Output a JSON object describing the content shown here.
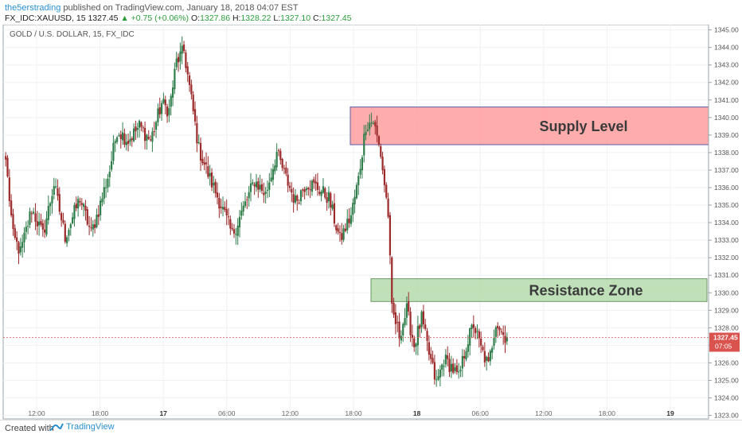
{
  "header": {
    "author": "the5erstrading",
    "published": "published on TradingView.com, January 18, 2018 04:07 EST",
    "symbol": "FX_IDC:XAUUSD, 15",
    "last": "1327.45",
    "change_arrow": "▲",
    "change": "+0.75 (+0.06%)",
    "o_label": "O:",
    "o_value": "1327.86",
    "h_label": "H:",
    "h_value": "1328.22",
    "l_label": "L:",
    "l_value": "1327.10",
    "c_label": "C:",
    "c_value": "1327.45"
  },
  "chart_data": {
    "type": "candlestick",
    "title": "GOLD / U.S. DOLLAR, 15, FX_IDC",
    "ylim": [
      1322.8,
      1345.3
    ],
    "y_ticks": [
      "1345.00",
      "1344.00",
      "1343.00",
      "1342.00",
      "1341.00",
      "1340.00",
      "1339.00",
      "1338.00",
      "1337.00",
      "1336.00",
      "1335.00",
      "1334.00",
      "1333.00",
      "1332.00",
      "1331.00",
      "1330.00",
      "1329.00",
      "1328.00",
      "1327.00",
      "1326.00",
      "1325.00",
      "1324.00",
      "1323.00"
    ],
    "x_ticks": [
      "12:00",
      "18:00",
      "17",
      "06:00",
      "12:00",
      "18:00",
      "18",
      "06:00",
      "12:00",
      "18:00",
      "19"
    ],
    "last_price_label": "1327.45",
    "countdown_label": "07:05",
    "last_price": 1327.45,
    "colors": {
      "up": "#2f7d4a",
      "down": "#9c2a2a",
      "last_price": "#d9534f",
      "supply": "#ff9e9e",
      "resistance": "#b5dbad"
    },
    "zones": [
      {
        "name": "supply",
        "label": "Supply Level",
        "top": 1340.6,
        "bottom": 1338.45
      },
      {
        "name": "resistance",
        "label": "Resistance Zone",
        "top": 1330.8,
        "bottom": 1329.5
      }
    ],
    "anchors": [
      [
        0,
        1337.6
      ],
      [
        4,
        1333.2
      ],
      [
        8,
        1332.3
      ],
      [
        14,
        1334.8
      ],
      [
        20,
        1333.3
      ],
      [
        26,
        1336.2
      ],
      [
        32,
        1333.2
      ],
      [
        40,
        1335.4
      ],
      [
        46,
        1333.4
      ],
      [
        50,
        1334.7
      ],
      [
        56,
        1337.0
      ],
      [
        60,
        1339.3
      ],
      [
        66,
        1338.7
      ],
      [
        72,
        1339.5
      ],
      [
        78,
        1338.7
      ],
      [
        84,
        1340.8
      ],
      [
        88,
        1340.4
      ],
      [
        92,
        1343.2
      ],
      [
        96,
        1343.8
      ],
      [
        100,
        1341.0
      ],
      [
        104,
        1338.2
      ],
      [
        110,
        1336.5
      ],
      [
        116,
        1335.0
      ],
      [
        122,
        1333.3
      ],
      [
        128,
        1334.8
      ],
      [
        134,
        1336.4
      ],
      [
        140,
        1335.6
      ],
      [
        146,
        1338.0
      ],
      [
        150,
        1336.8
      ],
      [
        156,
        1335.2
      ],
      [
        162,
        1336.3
      ],
      [
        168,
        1336.0
      ],
      [
        174,
        1335.4
      ],
      [
        180,
        1333.0
      ],
      [
        186,
        1334.4
      ],
      [
        190,
        1336.5
      ],
      [
        194,
        1339.6
      ],
      [
        198,
        1339.8
      ],
      [
        202,
        1337.9
      ],
      [
        206,
        1334.5
      ],
      [
        208,
        1329.0
      ],
      [
        212,
        1327.6
      ],
      [
        216,
        1329.0
      ],
      [
        220,
        1327.0
      ],
      [
        224,
        1328.5
      ],
      [
        228,
        1326.5
      ],
      [
        232,
        1324.8
      ],
      [
        236,
        1326.2
      ],
      [
        240,
        1325.8
      ],
      [
        244,
        1325.1
      ],
      [
        248,
        1327.0
      ],
      [
        252,
        1328.2
      ],
      [
        256,
        1326.8
      ],
      [
        260,
        1325.8
      ],
      [
        264,
        1328.4
      ],
      [
        268,
        1327.6
      ],
      [
        270,
        1327.45
      ]
    ],
    "candle_count": 271
  }
}
